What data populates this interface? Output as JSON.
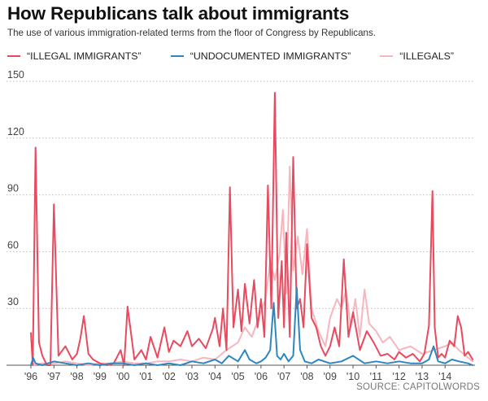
{
  "header": {
    "title": "How Republicans talk about immigrants",
    "subtitle": "The use of various immigration-related terms from the floor of Congress by Republicans."
  },
  "legend": {
    "items": [
      {
        "label": "“ILLEGAL IMMIGRANTS”",
        "color": "#e84a5f"
      },
      {
        "label": "“UNDOCUMENTED IMMIGRANTS”",
        "color": "#2e86c1"
      },
      {
        "label": "“ILLEGALS”",
        "color": "#f7b6bd"
      }
    ]
  },
  "source": "SOURCE: CAPITOLWORDS",
  "chart_data": {
    "type": "line",
    "x_unit": "year",
    "xlim": [
      1996,
      2015.3
    ],
    "ylim": [
      0,
      150
    ],
    "yticks": [
      30,
      60,
      90,
      120,
      150
    ],
    "grid": true,
    "legend_position": "top",
    "xtick_values": [
      1996,
      1997,
      1998,
      1999,
      2000,
      2001,
      2002,
      2003,
      2004,
      2005,
      2006,
      2007,
      2008,
      2009,
      2010,
      2011,
      2012,
      2013,
      2014
    ],
    "xtick_labels": [
      "'96",
      "'97",
      "'98",
      "'99",
      "'00",
      "'01",
      "'02",
      "'03",
      "'04",
      "'05",
      "'06",
      "'07",
      "'08",
      "'09",
      "'10",
      "'11",
      "'12",
      "'13",
      "'14"
    ],
    "series": [
      {
        "name": "“ILLEGALS”",
        "color": "#f7b6bd",
        "x": [
          1996.0,
          1996.5,
          1997.0,
          1997.5,
          1998.0,
          1998.5,
          1999.0,
          1999.5,
          2000.0,
          2000.5,
          2001.0,
          2001.5,
          2002.0,
          2002.5,
          2003.0,
          2003.5,
          2004.0,
          2004.5,
          2005.0,
          2005.3,
          2005.6,
          2005.9,
          2006.2,
          2006.4,
          2006.6,
          2006.8,
          2006.95,
          2007.1,
          2007.25,
          2007.4,
          2007.6,
          2007.8,
          2008.0,
          2008.2,
          2008.5,
          2008.8,
          2009.0,
          2009.3,
          2009.5,
          2009.7,
          2009.9,
          2010.1,
          2010.3,
          2010.5,
          2010.7,
          2011.0,
          2011.3,
          2011.6,
          2012.0,
          2012.5,
          2013.0,
          2013.5,
          2014.0,
          2014.3,
          2014.6,
          2015.0,
          2015.2
        ],
        "y": [
          0,
          1,
          1,
          2,
          1,
          0,
          1,
          1,
          2,
          1,
          1,
          2,
          2,
          3,
          2,
          4,
          3,
          8,
          12,
          20,
          15,
          25,
          35,
          55,
          45,
          58,
          82,
          38,
          105,
          50,
          68,
          48,
          72,
          30,
          18,
          10,
          25,
          35,
          30,
          40,
          20,
          35,
          15,
          40,
          22,
          18,
          12,
          15,
          8,
          10,
          6,
          8,
          10,
          12,
          8,
          4,
          2
        ]
      },
      {
        "name": "“ILLEGAL IMMIGRANTS”",
        "color": "#e84a5f",
        "x": [
          1996.0,
          1996.08,
          1996.2,
          1996.35,
          1996.5,
          1996.7,
          1996.85,
          1997.0,
          1997.2,
          1997.5,
          1997.8,
          1998.0,
          1998.15,
          1998.3,
          1998.5,
          1998.7,
          1999.0,
          1999.3,
          1999.6,
          1999.9,
          2000.05,
          2000.2,
          2000.5,
          2000.8,
          2001.0,
          2001.2,
          2001.5,
          2001.8,
          2002.0,
          2002.2,
          2002.5,
          2002.8,
          2003.0,
          2003.3,
          2003.6,
          2003.9,
          2004.0,
          2004.2,
          2004.35,
          2004.5,
          2004.65,
          2004.8,
          2005.0,
          2005.15,
          2005.3,
          2005.5,
          2005.7,
          2005.85,
          2006.0,
          2006.15,
          2006.3,
          2006.45,
          2006.6,
          2006.75,
          2006.9,
          2007.0,
          2007.1,
          2007.25,
          2007.4,
          2007.55,
          2007.7,
          2007.85,
          2008.0,
          2008.2,
          2008.4,
          2008.6,
          2008.8,
          2009.0,
          2009.2,
          2009.4,
          2009.6,
          2009.8,
          2010.0,
          2010.3,
          2010.6,
          2010.9,
          2011.2,
          2011.5,
          2011.8,
          2012.0,
          2012.3,
          2012.6,
          2012.9,
          2013.1,
          2013.3,
          2013.45,
          2013.55,
          2013.7,
          2013.85,
          2014.0,
          2014.2,
          2014.4,
          2014.55,
          2014.7,
          2014.85,
          2015.0,
          2015.2
        ],
        "y": [
          17,
          0,
          115,
          12,
          5,
          0,
          0,
          85,
          5,
          10,
          3,
          6,
          14,
          26,
          6,
          3,
          1,
          0,
          1,
          8,
          0,
          31,
          3,
          8,
          3,
          15,
          4,
          20,
          7,
          13,
          10,
          18,
          10,
          14,
          9,
          19,
          25,
          10,
          30,
          8,
          94,
          20,
          40,
          18,
          43,
          22,
          45,
          20,
          35,
          15,
          95,
          30,
          144,
          25,
          55,
          20,
          70,
          15,
          110,
          30,
          35,
          20,
          64,
          25,
          20,
          10,
          5,
          10,
          20,
          10,
          56,
          15,
          28,
          8,
          18,
          12,
          5,
          6,
          3,
          7,
          4,
          6,
          2,
          6,
          21,
          92,
          20,
          4,
          6,
          4,
          13,
          10,
          26,
          20,
          5,
          7,
          3
        ]
      },
      {
        "name": "“UNDOCUMENTED IMMIGRANTS”",
        "color": "#2e86c1",
        "x": [
          1996.0,
          1996.1,
          1996.2,
          1996.5,
          1997.0,
          1997.5,
          1998.0,
          1998.5,
          1999.0,
          1999.5,
          2000.0,
          2000.5,
          2001.0,
          2001.5,
          2002.0,
          2002.5,
          2003.0,
          2003.5,
          2004.0,
          2004.3,
          2004.6,
          2005.0,
          2005.3,
          2005.5,
          2005.8,
          2006.0,
          2006.2,
          2006.4,
          2006.55,
          2006.7,
          2006.85,
          2007.0,
          2007.2,
          2007.4,
          2007.55,
          2007.7,
          2007.9,
          2008.2,
          2008.5,
          2009.0,
          2009.5,
          2010.0,
          2010.5,
          2011.0,
          2011.5,
          2012.0,
          2012.5,
          2013.0,
          2013.3,
          2013.5,
          2013.7,
          2014.0,
          2014.3,
          2014.6,
          2015.0,
          2015.2
        ],
        "y": [
          0,
          4,
          1,
          0,
          2,
          1,
          0,
          1,
          0,
          1,
          1,
          0,
          1,
          0,
          1,
          0,
          2,
          1,
          3,
          1,
          5,
          2,
          8,
          3,
          1,
          2,
          4,
          8,
          33,
          5,
          3,
          6,
          2,
          5,
          41,
          8,
          2,
          1,
          3,
          1,
          2,
          5,
          1,
          2,
          1,
          2,
          1,
          1,
          3,
          10,
          2,
          1,
          3,
          2,
          1,
          0
        ]
      }
    ]
  }
}
